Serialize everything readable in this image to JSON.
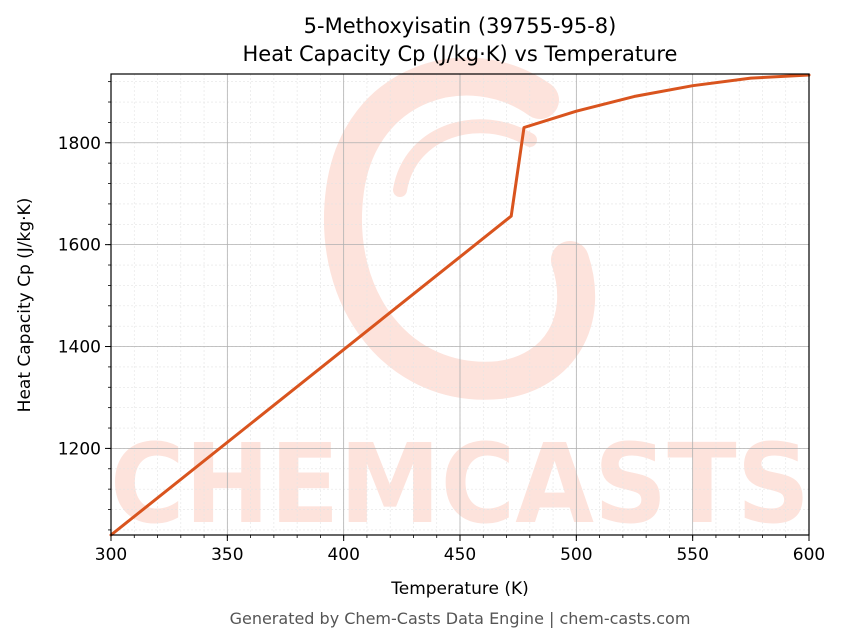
{
  "chart_data": {
    "type": "line",
    "title": "5-Methoxyisatin (39755-95-8)",
    "subtitle": "Heat Capacity Cp (J/kg·K) vs Temperature",
    "xlabel": "Temperature (K)",
    "ylabel": "Heat Capacity Cp (J/kg·K)",
    "xlim": [
      300,
      600
    ],
    "ylim": [
      1030,
      1935
    ],
    "x_ticks": [
      300,
      350,
      400,
      450,
      500,
      550,
      600
    ],
    "y_ticks": [
      1200,
      1400,
      1600,
      1800
    ],
    "grid": true,
    "line_color": "#d9541e",
    "series": [
      {
        "x": [
          300,
          472,
          477.5,
          500,
          525,
          550,
          575,
          600
        ],
        "y": [
          1030,
          1656,
          1830,
          1862,
          1891,
          1912,
          1927,
          1933
        ]
      }
    ]
  },
  "watermark": "CHEMCASTS",
  "footer": "Generated by Chem-Casts Data Engine | chem-casts.com"
}
